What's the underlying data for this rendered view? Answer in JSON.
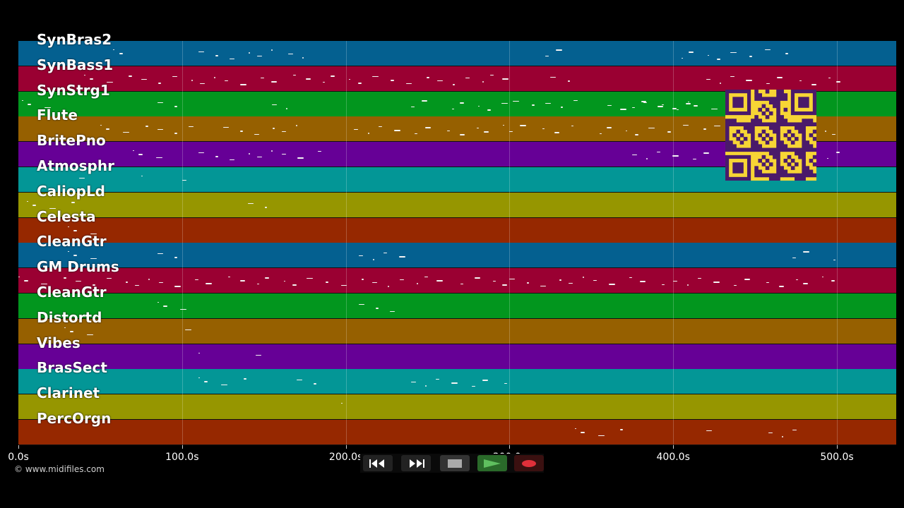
{
  "tracks": [
    {
      "name": "SynBras2",
      "color": "#046090"
    },
    {
      "name": "SynBass1",
      "color": "#9a0032"
    },
    {
      "name": "SynStrg1",
      "color": "#02961e"
    },
    {
      "name": "Flute",
      "color": "#966000"
    },
    {
      "name": "BritePno",
      "color": "#660096"
    },
    {
      "name": "Atmosphr",
      "color": "#039696"
    },
    {
      "name": "CaliopLd",
      "color": "#969600"
    },
    {
      "name": "Celesta",
      "color": "#962800"
    },
    {
      "name": "CleanGtr",
      "color": "#046090"
    },
    {
      "name": "GM Drums",
      "color": "#9a0032"
    },
    {
      "name": "CleanGtr",
      "color": "#02961e"
    },
    {
      "name": "Distortd",
      "color": "#966000"
    },
    {
      "name": "Vibes",
      "color": "#660096"
    },
    {
      "name": "BrasSect",
      "color": "#039696"
    },
    {
      "name": "Clarinet",
      "color": "#969600"
    },
    {
      "name": "PercOrgn",
      "color": "#962800"
    }
  ],
  "time_axis": {
    "ticks": [
      "0.0s",
      "100.0s",
      "200.0s",
      "300.0s",
      "400.0s",
      "500.0s"
    ]
  },
  "notes": [
    [
      [
        58,
        65
      ],
      [
        110,
        155
      ],
      [
        165,
        180
      ],
      [
        322,
        340
      ],
      [
        405,
        470
      ]
    ],
    [
      [
        40,
        300
      ],
      [
        325,
        340
      ],
      [
        420,
        500
      ]
    ],
    [
      [
        2,
        18
      ],
      [
        85,
        100
      ],
      [
        155,
        170
      ],
      [
        240,
        255
      ],
      [
        265,
        300
      ],
      [
        302,
        320
      ],
      [
        322,
        340
      ],
      [
        360,
        420
      ],
      [
        375,
        440
      ]
    ],
    [
      [
        50,
        110
      ],
      [
        125,
        170
      ],
      [
        205,
        300
      ],
      [
        300,
        340
      ],
      [
        355,
        420
      ],
      [
        425,
        500
      ]
    ],
    [
      [
        70,
        85
      ],
      [
        110,
        185
      ],
      [
        375,
        420
      ],
      [
        440,
        500
      ]
    ],
    [
      [
        75,
        78
      ],
      [
        37,
        45
      ],
      [
        100,
        108
      ]
    ],
    [
      [
        5,
        40
      ],
      [
        140,
        155
      ]
    ],
    [
      [
        30,
        52
      ]
    ],
    [
      [
        30,
        52
      ],
      [
        85,
        100
      ],
      [
        208,
        238
      ],
      [
        473,
        485
      ],
      [
        498,
        500
      ]
    ],
    [
      [
        0,
        300
      ],
      [
        300,
        400
      ],
      [
        400,
        500
      ]
    ],
    [
      [
        85,
        100
      ],
      [
        208,
        238
      ]
    ],
    [
      [
        28,
        55
      ],
      [
        102,
        110
      ]
    ],
    [
      [
        110,
        112
      ],
      [
        145,
        155
      ]
    ],
    [
      [
        110,
        140
      ],
      [
        170,
        185
      ],
      [
        240,
        300
      ]
    ],
    [
      [
        197,
        200
      ]
    ],
    [
      [
        340,
        375
      ],
      [
        420,
        428
      ],
      [
        458,
        475
      ]
    ]
  ],
  "copyright": "© www.midifiles.com",
  "transport": {
    "buttons": [
      "rewind-icon",
      "fast-forward-icon",
      "stop-icon",
      "play-icon",
      "record-icon"
    ],
    "play_color": "#5fbf5f",
    "record_color": "#e0303a"
  },
  "qr_code": {
    "bg_color": "#f7d535",
    "fg_color": "#4a1a6a"
  }
}
